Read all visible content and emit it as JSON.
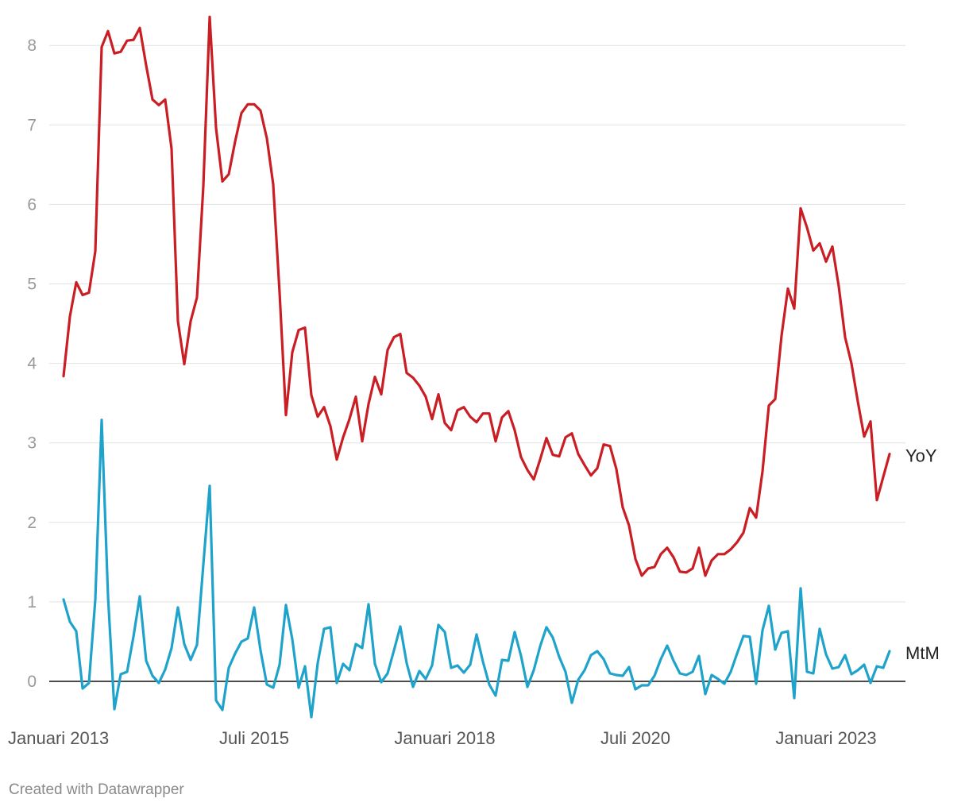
{
  "credit": "Created with Datawrapper",
  "chart_data": {
    "type": "line",
    "x_start": "2013-01",
    "x_ticks": [
      {
        "label": "Januari 2013",
        "index": 0
      },
      {
        "label": "Juli 2015",
        "index": 30
      },
      {
        "label": "Januari 2018",
        "index": 60
      },
      {
        "label": "Juli 2020",
        "index": 90
      },
      {
        "label": "Januari 2023",
        "index": 120
      }
    ],
    "ylim": [
      0,
      8.4
    ],
    "y_ticks": [
      0,
      1,
      2,
      3,
      4,
      5,
      6,
      7,
      8
    ],
    "grid": true,
    "series": [
      {
        "name": "YoY",
        "color": "#c91e24",
        "values": [
          3.84,
          4.59,
          5.02,
          4.86,
          4.89,
          5.41,
          7.98,
          8.18,
          7.9,
          7.92,
          8.06,
          8.07,
          8.22,
          7.75,
          7.32,
          7.25,
          7.32,
          6.7,
          4.53,
          3.99,
          4.53,
          4.83,
          6.23,
          8.36,
          6.96,
          6.29,
          6.38,
          6.79,
          7.15,
          7.26,
          7.26,
          7.18,
          6.83,
          6.25,
          4.89,
          3.35,
          4.14,
          4.42,
          4.45,
          3.6,
          3.33,
          3.45,
          3.21,
          2.79,
          3.07,
          3.3,
          3.58,
          3.02,
          3.49,
          3.83,
          3.61,
          4.17,
          4.33,
          4.37,
          3.88,
          3.82,
          3.72,
          3.58,
          3.3,
          3.61,
          3.25,
          3.16,
          3.41,
          3.45,
          3.33,
          3.26,
          3.37,
          3.37,
          3.02,
          3.32,
          3.4,
          3.16,
          2.82,
          2.66,
          2.54,
          2.79,
          3.06,
          2.85,
          2.83,
          3.07,
          3.12,
          2.86,
          2.72,
          2.59,
          2.68,
          2.98,
          2.96,
          2.67,
          2.19,
          1.96,
          1.54,
          1.33,
          1.42,
          1.44,
          1.6,
          1.68,
          1.56,
          1.38,
          1.37,
          1.42,
          1.68,
          1.33,
          1.52,
          1.6,
          1.6,
          1.66,
          1.75,
          1.87,
          2.18,
          2.06,
          2.64,
          3.47,
          3.55,
          4.35,
          4.94,
          4.69,
          5.95,
          5.71,
          5.42,
          5.51,
          5.28,
          5.47,
          4.97,
          4.33,
          4.0,
          3.52,
          3.08,
          3.27,
          2.28,
          2.57,
          2.86
        ]
      },
      {
        "name": "MtM",
        "color": "#1fa3cb",
        "values": [
          1.03,
          0.75,
          0.63,
          -0.09,
          -0.02,
          1.03,
          3.29,
          1.07,
          -0.35,
          0.09,
          0.12,
          0.56,
          1.07,
          0.26,
          0.07,
          -0.02,
          0.15,
          0.42,
          0.93,
          0.47,
          0.27,
          0.46,
          1.47,
          2.46,
          -0.24,
          -0.36,
          0.17,
          0.35,
          0.5,
          0.54,
          0.93,
          0.39,
          -0.04,
          -0.08,
          0.21,
          0.96,
          0.53,
          -0.08,
          0.19,
          -0.45,
          0.23,
          0.66,
          0.68,
          -0.02,
          0.22,
          0.14,
          0.47,
          0.42,
          0.97,
          0.22,
          -0.01,
          0.1,
          0.39,
          0.69,
          0.23,
          -0.07,
          0.13,
          0.03,
          0.2,
          0.71,
          0.62,
          0.17,
          0.2,
          0.11,
          0.21,
          0.59,
          0.25,
          -0.04,
          -0.18,
          0.27,
          0.26,
          0.62,
          0.32,
          -0.07,
          0.14,
          0.44,
          0.68,
          0.55,
          0.31,
          0.12,
          -0.27,
          0.02,
          0.14,
          0.33,
          0.38,
          0.28,
          0.1,
          0.08,
          0.07,
          0.18,
          -0.1,
          -0.05,
          -0.05,
          0.07,
          0.28,
          0.45,
          0.26,
          0.1,
          0.08,
          0.12,
          0.32,
          -0.16,
          0.08,
          0.03,
          -0.03,
          0.12,
          0.35,
          0.57,
          0.56,
          -0.03,
          0.64,
          0.95,
          0.4,
          0.61,
          0.63,
          -0.21,
          1.17,
          0.12,
          0.1,
          0.66,
          0.34,
          0.16,
          0.18,
          0.33,
          0.09,
          0.14,
          0.21,
          -0.02,
          0.19,
          0.17,
          0.38
        ]
      }
    ]
  }
}
